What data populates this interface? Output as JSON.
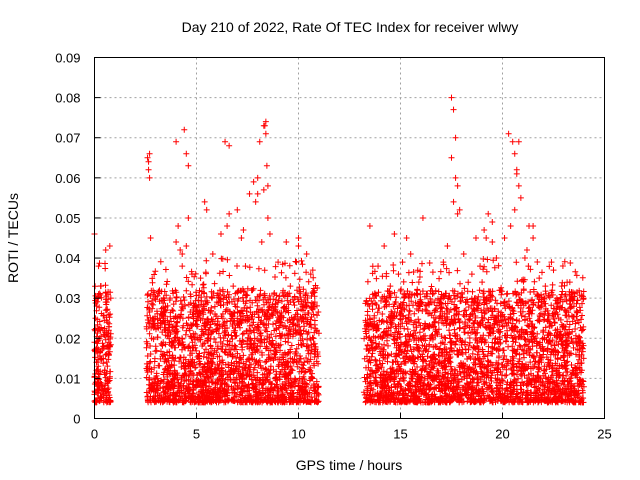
{
  "chart_data": {
    "type": "scatter",
    "title": "Day 210 of 2022, Rate Of TEC Index for receiver wlwy",
    "xlabel": "GPS time / hours",
    "ylabel": "ROTI / TECUs",
    "xlim": [
      0,
      25
    ],
    "ylim": [
      0,
      0.09
    ],
    "xticks": [
      "0",
      "5",
      "10",
      "15",
      "20",
      "25"
    ],
    "yticks": [
      "0",
      "0.01",
      "0.02",
      "0.03",
      "0.04",
      "0.05",
      "0.06",
      "0.07",
      "0.08",
      "0.09"
    ],
    "grid": true,
    "marker": "+",
    "color": "#ff0000",
    "series": [
      {
        "x": [
          0.0,
          0.05,
          0.1,
          0.15,
          0.2,
          0.25,
          0.3,
          0.35,
          0.4,
          0.45,
          0.5,
          0.55,
          0.6,
          0.65,
          0.7,
          0.75,
          0.8,
          0.0,
          0.1,
          0.2,
          0.3,
          0.5,
          0.6,
          0.7,
          0.75,
          2.6,
          2.65,
          2.7,
          2.75,
          2.8,
          3.0,
          3.2,
          3.4,
          3.6,
          3.8,
          4.0,
          4.1,
          4.2,
          4.3,
          4.4,
          4.5,
          4.6,
          4.7,
          4.8,
          5.0,
          5.2,
          5.4,
          5.6,
          5.8,
          6.0,
          6.2,
          6.4,
          6.6,
          6.8,
          7.0,
          7.2,
          7.4,
          7.6,
          7.8,
          8.0,
          8.1,
          8.2,
          8.3,
          8.4,
          8.5,
          8.6,
          8.8,
          9.0,
          9.2,
          9.4,
          9.6,
          9.8,
          10.0,
          10.2,
          10.4,
          10.6,
          10.8,
          10.9,
          2.65,
          2.7,
          4.0,
          4.3,
          4.5,
          4.6,
          5.5,
          6.5,
          6.6,
          7.3,
          7.9,
          8.0,
          8.3,
          8.35,
          8.4,
          8.45,
          8.5,
          8.6,
          9.9,
          10.0,
          10.7,
          3.8,
          4.9,
          5.6,
          6.0,
          7.1,
          7.6,
          8.7,
          9.5,
          13.3,
          13.5,
          13.7,
          13.9,
          14.1,
          14.3,
          14.5,
          14.7,
          14.9,
          15.1,
          15.3,
          15.5,
          15.7,
          15.9,
          16.1,
          16.3,
          16.5,
          16.7,
          16.9,
          17.1,
          17.3,
          17.5,
          17.6,
          17.7,
          17.8,
          17.9,
          18.1,
          18.3,
          18.5,
          18.7,
          18.9,
          19.1,
          19.3,
          19.5,
          19.7,
          19.9,
          20.1,
          20.3,
          20.5,
          20.6,
          20.7,
          20.8,
          20.9,
          21.1,
          21.3,
          21.5,
          21.7,
          21.9,
          22.1,
          22.3,
          22.5,
          22.7,
          22.9,
          23.1,
          23.3,
          23.5,
          23.7,
          23.9,
          13.6,
          14.0,
          14.4,
          15.0,
          15.6,
          16.0,
          17.5,
          17.6,
          17.7,
          17.8,
          19.2,
          19.5,
          20.4,
          20.6,
          20.7,
          20.8,
          21.2,
          21.5,
          21.8,
          22.4,
          23.2,
          23.6,
          14.2,
          18.2,
          19.0,
          22.0
        ],
        "y": [
          0.046,
          0.025,
          0.012,
          0.009,
          0.038,
          0.02,
          0.033,
          0.015,
          0.008,
          0.018,
          0.012,
          0.042,
          0.029,
          0.024,
          0.016,
          0.01,
          0.03,
          0.006,
          0.014,
          0.031,
          0.022,
          0.011,
          0.027,
          0.019,
          0.043,
          0.065,
          0.062,
          0.06,
          0.045,
          0.02,
          0.018,
          0.025,
          0.03,
          0.015,
          0.022,
          0.069,
          0.048,
          0.042,
          0.038,
          0.072,
          0.066,
          0.063,
          0.031,
          0.019,
          0.027,
          0.035,
          0.054,
          0.022,
          0.041,
          0.029,
          0.046,
          0.069,
          0.068,
          0.033,
          0.052,
          0.045,
          0.038,
          0.056,
          0.059,
          0.06,
          0.069,
          0.044,
          0.073,
          0.074,
          0.058,
          0.025,
          0.031,
          0.039,
          0.021,
          0.044,
          0.033,
          0.025,
          0.045,
          0.028,
          0.041,
          0.036,
          0.029,
          0.022,
          0.064,
          0.066,
          0.044,
          0.041,
          0.043,
          0.05,
          0.052,
          0.048,
          0.051,
          0.047,
          0.054,
          0.056,
          0.057,
          0.073,
          0.071,
          0.063,
          0.05,
          0.046,
          0.039,
          0.043,
          0.037,
          0.018,
          0.014,
          0.016,
          0.012,
          0.013,
          0.011,
          0.015,
          0.02,
          0.024,
          0.048,
          0.03,
          0.038,
          0.02,
          0.028,
          0.033,
          0.046,
          0.036,
          0.039,
          0.045,
          0.041,
          0.02,
          0.034,
          0.05,
          0.023,
          0.029,
          0.018,
          0.025,
          0.039,
          0.043,
          0.08,
          0.077,
          0.07,
          0.058,
          0.052,
          0.041,
          0.029,
          0.036,
          0.045,
          0.038,
          0.047,
          0.051,
          0.044,
          0.04,
          0.032,
          0.045,
          0.071,
          0.069,
          0.066,
          0.062,
          0.058,
          0.055,
          0.04,
          0.048,
          0.045,
          0.031,
          0.029,
          0.033,
          0.023,
          0.037,
          0.026,
          0.033,
          0.021,
          0.034,
          0.028,
          0.019,
          0.022,
          0.012,
          0.009,
          0.011,
          0.008,
          0.01,
          0.009,
          0.065,
          0.054,
          0.06,
          0.051,
          0.045,
          0.049,
          0.048,
          0.052,
          0.061,
          0.069,
          0.042,
          0.048,
          0.035,
          0.039,
          0.018,
          0.016,
          0.043,
          0.027,
          0.034,
          0.022
        ]
      }
    ]
  }
}
